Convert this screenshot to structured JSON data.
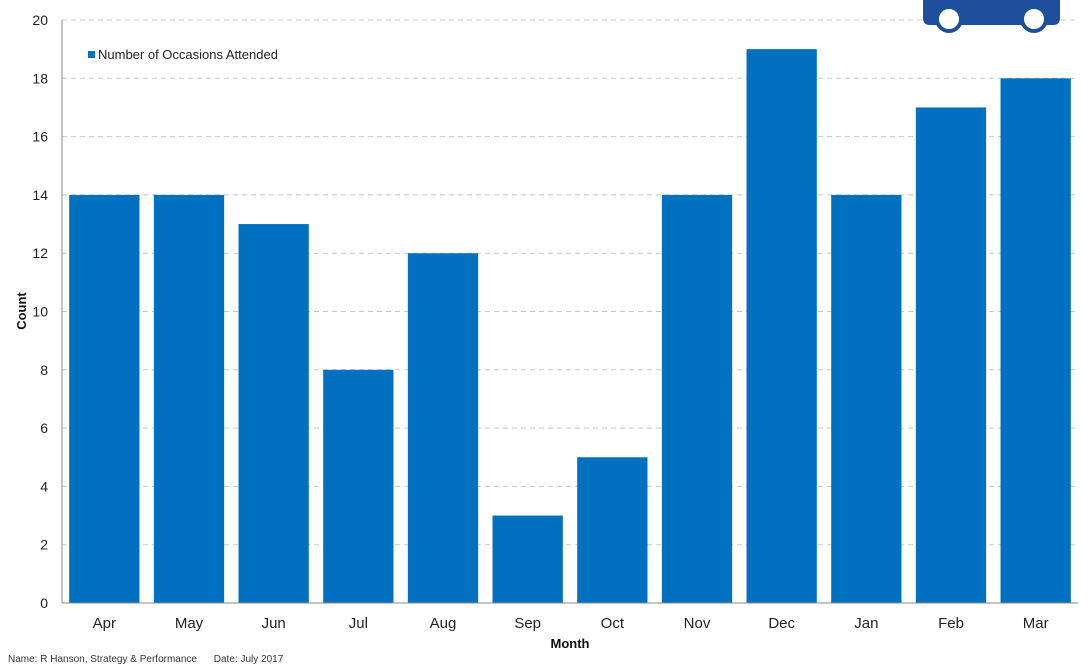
{
  "chart_data": {
    "type": "bar",
    "categories": [
      "Apr",
      "May",
      "Jun",
      "Jul",
      "Aug",
      "Sep",
      "Oct",
      "Nov",
      "Dec",
      "Jan",
      "Feb",
      "Mar"
    ],
    "series": [
      {
        "name": "Number of Occasions Attended",
        "values": [
          14,
          14,
          13,
          8,
          12,
          3,
          5,
          14,
          19,
          14,
          17,
          18
        ]
      }
    ],
    "xlabel": "Month",
    "ylabel": "Count",
    "ylim": [
      0,
      20
    ],
    "yticks": [
      0,
      2,
      4,
      6,
      8,
      10,
      12,
      14,
      16,
      18,
      20
    ],
    "grid": true,
    "legend_position": "top-left",
    "bar_color": "#0070C0"
  },
  "footer": {
    "name": "Name: R Hanson, Strategy & Performance",
    "date": "Date: July 2017"
  },
  "logo": {
    "icon": "vehicle-icon",
    "color": "#1F4E9C"
  }
}
